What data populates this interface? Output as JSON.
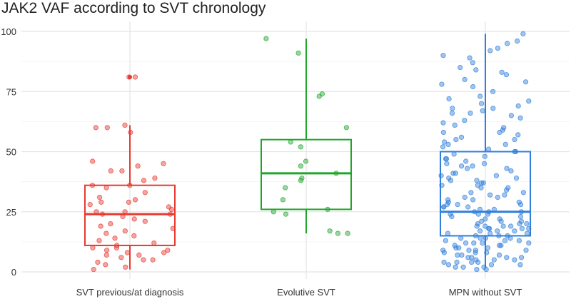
{
  "chart_data": {
    "type": "box",
    "title": "JAK2 VAF according to SVT chronology",
    "xlabel": "",
    "ylabel": "",
    "ylim": [
      0,
      100
    ],
    "y_ticks": [
      0,
      25,
      50,
      75,
      100
    ],
    "grid": true,
    "legend": "none",
    "categories": [
      "SVT previous/at diagnosis",
      "Evolutive SVT",
      "MPN without SVT"
    ],
    "colors": [
      "#e8382f",
      "#1fa62a",
      "#2f7fdc"
    ],
    "boxes": [
      {
        "category": "SVT previous/at diagnosis",
        "whisker_low": 1,
        "q1": 11,
        "median": 24,
        "q3": 36,
        "whisker_high": 61,
        "outliers": [
          81
        ]
      },
      {
        "category": "Evolutive SVT",
        "whisker_low": 16,
        "q1": 26,
        "median": 41,
        "q3": 55,
        "whisker_high": 97,
        "outliers": []
      },
      {
        "category": "MPN without SVT",
        "whisker_low": 2,
        "q1": 15,
        "median": 25,
        "q3": 50,
        "whisker_high": 99,
        "outliers": []
      }
    ],
    "points": [
      [
        81,
        81,
        60,
        60,
        61,
        58,
        46,
        45,
        44,
        42,
        42,
        39,
        38,
        36,
        36,
        35,
        33,
        31,
        30,
        29,
        29,
        28,
        27,
        26,
        25,
        25,
        24,
        24,
        23,
        22,
        21,
        20,
        19,
        18,
        17,
        16,
        15,
        14,
        13,
        12,
        11,
        10,
        10,
        9,
        9,
        8,
        8,
        7,
        7,
        6,
        5,
        5,
        4,
        3,
        2,
        1
      ],
      [
        97,
        91,
        74,
        73,
        60,
        54,
        52,
        46,
        44,
        41,
        39,
        38,
        35,
        30,
        26,
        25,
        24,
        17,
        16,
        16
      ],
      [
        99,
        96,
        95,
        93,
        92,
        90,
        89,
        87,
        85,
        84,
        83,
        82,
        80,
        79,
        78,
        77,
        75,
        73,
        72,
        71,
        70,
        69,
        68,
        67,
        66,
        65,
        64,
        63,
        62,
        61,
        60,
        59,
        58,
        57,
        56,
        55,
        55,
        54,
        53,
        52,
        51,
        50,
        50,
        49,
        48,
        47,
        46,
        45,
        45,
        44,
        44,
        43,
        42,
        41,
        41,
        40,
        40,
        39,
        38,
        38,
        37,
        36,
        36,
        35,
        35,
        34,
        33,
        33,
        32,
        31,
        31,
        30,
        30,
        29,
        29,
        28,
        28,
        27,
        27,
        26,
        26,
        25,
        25,
        25,
        24,
        24,
        23,
        23,
        22,
        22,
        21,
        21,
        21,
        20,
        20,
        20,
        19,
        19,
        19,
        18,
        18,
        18,
        17,
        17,
        17,
        16,
        16,
        16,
        15,
        15,
        15,
        14,
        14,
        14,
        13,
        13,
        13,
        12,
        12,
        12,
        11,
        11,
        11,
        10,
        10,
        10,
        9,
        9,
        9,
        8,
        8,
        8,
        7,
        7,
        7,
        6,
        6,
        6,
        5,
        5,
        5,
        4,
        4,
        4,
        3,
        3,
        3,
        2,
        2,
        2,
        1,
        1,
        66,
        58,
        47,
        43,
        37,
        32,
        28,
        24,
        19,
        14,
        9,
        4,
        68,
        53,
        39,
        27,
        18,
        12,
        6
      ]
    ]
  }
}
